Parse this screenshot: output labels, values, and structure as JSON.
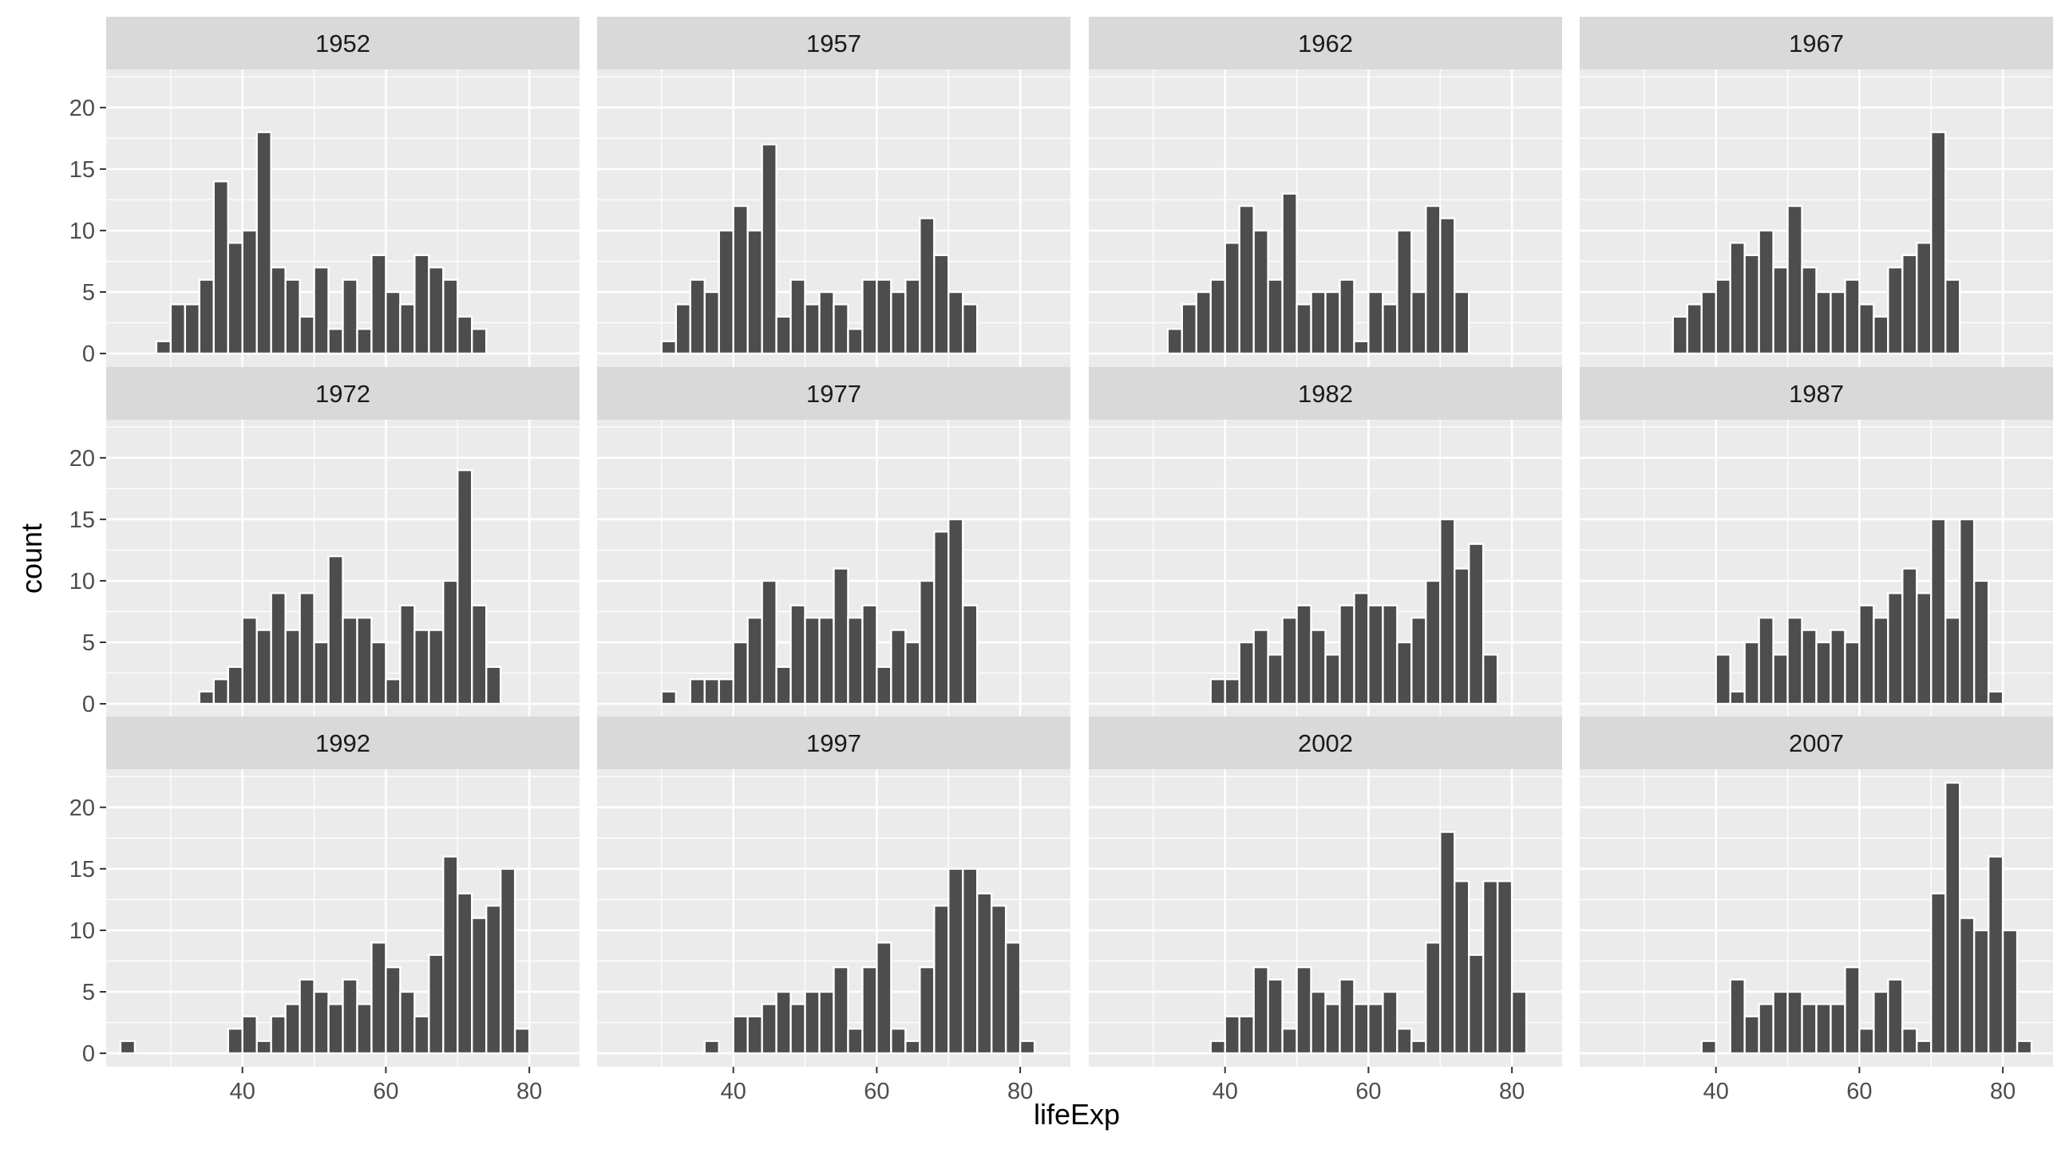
{
  "chart_data": {
    "type": "bar",
    "xlabel": "lifeExp",
    "ylabel": "count",
    "xlim": [
      21,
      87
    ],
    "ylim": [
      -1.1,
      23.1
    ],
    "x_ticks": [
      40,
      60,
      80
    ],
    "y_ticks": [
      0,
      5,
      10,
      15,
      20
    ],
    "bin_width": 2,
    "grid": true,
    "panels": [
      {
        "label": "1952",
        "bins": [
          [
            29,
            1
          ],
          [
            31,
            4
          ],
          [
            33,
            4
          ],
          [
            35,
            6
          ],
          [
            37,
            14
          ],
          [
            39,
            9
          ],
          [
            41,
            10
          ],
          [
            43,
            18
          ],
          [
            45,
            7
          ],
          [
            47,
            6
          ],
          [
            49,
            3
          ],
          [
            51,
            7
          ],
          [
            53,
            2
          ],
          [
            55,
            6
          ],
          [
            57,
            2
          ],
          [
            59,
            8
          ],
          [
            61,
            5
          ],
          [
            63,
            4
          ],
          [
            65,
            8
          ],
          [
            67,
            7
          ],
          [
            69,
            6
          ],
          [
            71,
            3
          ],
          [
            73,
            2
          ]
        ]
      },
      {
        "label": "1957",
        "bins": [
          [
            31,
            1
          ],
          [
            33,
            4
          ],
          [
            35,
            6
          ],
          [
            37,
            5
          ],
          [
            39,
            10
          ],
          [
            41,
            12
          ],
          [
            43,
            10
          ],
          [
            45,
            17
          ],
          [
            47,
            3
          ],
          [
            49,
            6
          ],
          [
            51,
            4
          ],
          [
            53,
            5
          ],
          [
            55,
            4
          ],
          [
            57,
            2
          ],
          [
            59,
            6
          ],
          [
            61,
            6
          ],
          [
            63,
            5
          ],
          [
            65,
            6
          ],
          [
            67,
            11
          ],
          [
            69,
            8
          ],
          [
            71,
            5
          ],
          [
            73,
            4
          ]
        ]
      },
      {
        "label": "1962",
        "bins": [
          [
            33,
            2
          ],
          [
            35,
            4
          ],
          [
            37,
            5
          ],
          [
            39,
            6
          ],
          [
            41,
            9
          ],
          [
            43,
            12
          ],
          [
            45,
            10
          ],
          [
            47,
            6
          ],
          [
            49,
            13
          ],
          [
            51,
            4
          ],
          [
            53,
            5
          ],
          [
            55,
            5
          ],
          [
            57,
            6
          ],
          [
            59,
            1
          ],
          [
            61,
            5
          ],
          [
            63,
            4
          ],
          [
            65,
            10
          ],
          [
            67,
            5
          ],
          [
            69,
            12
          ],
          [
            71,
            11
          ],
          [
            73,
            5
          ]
        ]
      },
      {
        "label": "1967",
        "bins": [
          [
            35,
            3
          ],
          [
            37,
            4
          ],
          [
            39,
            5
          ],
          [
            41,
            6
          ],
          [
            43,
            9
          ],
          [
            45,
            8
          ],
          [
            47,
            10
          ],
          [
            49,
            7
          ],
          [
            51,
            12
          ],
          [
            53,
            7
          ],
          [
            55,
            5
          ],
          [
            57,
            5
          ],
          [
            59,
            6
          ],
          [
            61,
            4
          ],
          [
            63,
            3
          ],
          [
            65,
            7
          ],
          [
            67,
            8
          ],
          [
            69,
            9
          ],
          [
            71,
            18
          ],
          [
            73,
            6
          ]
        ]
      },
      {
        "label": "1972",
        "bins": [
          [
            35,
            1
          ],
          [
            37,
            2
          ],
          [
            39,
            3
          ],
          [
            41,
            7
          ],
          [
            43,
            6
          ],
          [
            45,
            9
          ],
          [
            47,
            6
          ],
          [
            49,
            9
          ],
          [
            51,
            5
          ],
          [
            53,
            12
          ],
          [
            55,
            7
          ],
          [
            57,
            7
          ],
          [
            59,
            5
          ],
          [
            61,
            2
          ],
          [
            63,
            8
          ],
          [
            65,
            6
          ],
          [
            67,
            6
          ],
          [
            69,
            10
          ],
          [
            71,
            19
          ],
          [
            73,
            8
          ],
          [
            75,
            3
          ]
        ]
      },
      {
        "label": "1977",
        "bins": [
          [
            31,
            1
          ],
          [
            35,
            2
          ],
          [
            37,
            2
          ],
          [
            39,
            2
          ],
          [
            41,
            5
          ],
          [
            43,
            7
          ],
          [
            45,
            10
          ],
          [
            47,
            3
          ],
          [
            49,
            8
          ],
          [
            51,
            7
          ],
          [
            53,
            7
          ],
          [
            55,
            11
          ],
          [
            57,
            7
          ],
          [
            59,
            8
          ],
          [
            61,
            3
          ],
          [
            63,
            6
          ],
          [
            65,
            5
          ],
          [
            67,
            10
          ],
          [
            69,
            14
          ],
          [
            71,
            15
          ],
          [
            73,
            8
          ]
        ]
      },
      {
        "label": "1982",
        "bins": [
          [
            39,
            2
          ],
          [
            41,
            2
          ],
          [
            43,
            5
          ],
          [
            45,
            6
          ],
          [
            47,
            4
          ],
          [
            49,
            7
          ],
          [
            51,
            8
          ],
          [
            53,
            6
          ],
          [
            55,
            4
          ],
          [
            57,
            8
          ],
          [
            59,
            9
          ],
          [
            61,
            8
          ],
          [
            63,
            8
          ],
          [
            65,
            5
          ],
          [
            67,
            7
          ],
          [
            69,
            10
          ],
          [
            71,
            15
          ],
          [
            73,
            11
          ],
          [
            75,
            13
          ],
          [
            77,
            4
          ]
        ]
      },
      {
        "label": "1987",
        "bins": [
          [
            41,
            4
          ],
          [
            43,
            1
          ],
          [
            45,
            5
          ],
          [
            47,
            7
          ],
          [
            49,
            4
          ],
          [
            51,
            7
          ],
          [
            53,
            6
          ],
          [
            55,
            5
          ],
          [
            57,
            6
          ],
          [
            59,
            5
          ],
          [
            61,
            8
          ],
          [
            63,
            7
          ],
          [
            65,
            9
          ],
          [
            67,
            11
          ],
          [
            69,
            9
          ],
          [
            71,
            15
          ],
          [
            73,
            7
          ],
          [
            75,
            15
          ],
          [
            77,
            10
          ],
          [
            79,
            1
          ]
        ]
      },
      {
        "label": "1992",
        "bins": [
          [
            24,
            1
          ],
          [
            39,
            2
          ],
          [
            41,
            3
          ],
          [
            43,
            1
          ],
          [
            45,
            3
          ],
          [
            47,
            4
          ],
          [
            49,
            6
          ],
          [
            51,
            5
          ],
          [
            53,
            4
          ],
          [
            55,
            6
          ],
          [
            57,
            4
          ],
          [
            59,
            9
          ],
          [
            61,
            7
          ],
          [
            63,
            5
          ],
          [
            65,
            3
          ],
          [
            67,
            8
          ],
          [
            69,
            16
          ],
          [
            71,
            13
          ],
          [
            73,
            11
          ],
          [
            75,
            12
          ],
          [
            77,
            15
          ],
          [
            79,
            2
          ]
        ]
      },
      {
        "label": "1997",
        "bins": [
          [
            37,
            1
          ],
          [
            41,
            3
          ],
          [
            43,
            3
          ],
          [
            45,
            4
          ],
          [
            47,
            5
          ],
          [
            49,
            4
          ],
          [
            51,
            5
          ],
          [
            53,
            5
          ],
          [
            55,
            7
          ],
          [
            57,
            2
          ],
          [
            59,
            7
          ],
          [
            61,
            9
          ],
          [
            63,
            2
          ],
          [
            65,
            1
          ],
          [
            67,
            7
          ],
          [
            69,
            12
          ],
          [
            71,
            15
          ],
          [
            73,
            15
          ],
          [
            75,
            13
          ],
          [
            77,
            12
          ],
          [
            79,
            9
          ],
          [
            81,
            1
          ]
        ]
      },
      {
        "label": "2002",
        "bins": [
          [
            39,
            1
          ],
          [
            41,
            3
          ],
          [
            43,
            3
          ],
          [
            45,
            7
          ],
          [
            47,
            6
          ],
          [
            49,
            2
          ],
          [
            51,
            7
          ],
          [
            53,
            5
          ],
          [
            55,
            4
          ],
          [
            57,
            6
          ],
          [
            59,
            4
          ],
          [
            61,
            4
          ],
          [
            63,
            5
          ],
          [
            65,
            2
          ],
          [
            67,
            1
          ],
          [
            69,
            9
          ],
          [
            71,
            18
          ],
          [
            73,
            14
          ],
          [
            75,
            8
          ],
          [
            77,
            14
          ],
          [
            79,
            14
          ],
          [
            81,
            5
          ]
        ]
      },
      {
        "label": "2007",
        "bins": [
          [
            39,
            1
          ],
          [
            43,
            6
          ],
          [
            45,
            3
          ],
          [
            47,
            4
          ],
          [
            49,
            5
          ],
          [
            51,
            5
          ],
          [
            53,
            4
          ],
          [
            55,
            4
          ],
          [
            57,
            4
          ],
          [
            59,
            7
          ],
          [
            61,
            2
          ],
          [
            63,
            5
          ],
          [
            65,
            6
          ],
          [
            67,
            2
          ],
          [
            69,
            1
          ],
          [
            71,
            13
          ],
          [
            73,
            22
          ],
          [
            75,
            11
          ],
          [
            77,
            10
          ],
          [
            79,
            16
          ],
          [
            81,
            10
          ],
          [
            83,
            1
          ]
        ]
      }
    ]
  }
}
